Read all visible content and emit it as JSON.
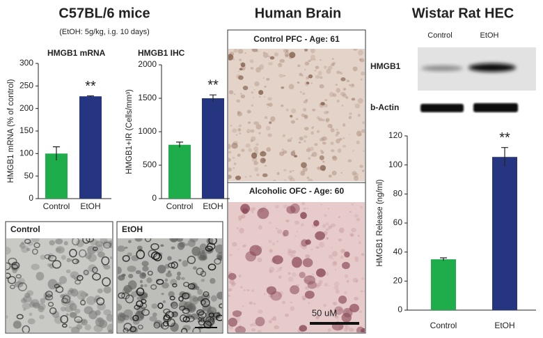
{
  "panels": {
    "mice": {
      "title": "C57BL/6 mice",
      "subtitle": "(EtOH: 5g/kg, i.g. 10 days)",
      "images": [
        "Control",
        "EtOH"
      ],
      "scale_bar": "50 uM"
    },
    "human": {
      "title": "Human Brain",
      "images": [
        "Control PFC - Age: 61",
        "Alcoholic OFC - Age: 60"
      ],
      "scale_bar": "50 uM"
    },
    "rat": {
      "title": "Wistar Rat HEC",
      "blot_columns": [
        "Control",
        "EtOH"
      ],
      "blot_rows": [
        "HMGB1",
        "b-Actin"
      ]
    }
  },
  "chart_data": [
    {
      "type": "bar",
      "title": "HMGB1 mRNA",
      "y_label": "HMGB1 mRNA (% of control)",
      "categories": [
        "Control",
        "EtOH"
      ],
      "values": [
        100,
        227
      ],
      "errors": [
        15,
        1
      ],
      "colors": [
        "#1fad4b",
        "#26357f"
      ],
      "annotation": "**",
      "ylim": [
        0,
        300
      ],
      "yticks": [
        0,
        50,
        100,
        150,
        200,
        250,
        300
      ]
    },
    {
      "type": "bar",
      "title": "HMGB1 IHC",
      "y_label": "HMGB1+IR (Cells/mm³)",
      "categories": [
        "Control",
        "EtOH"
      ],
      "values": [
        805,
        1500
      ],
      "errors": [
        40,
        50
      ],
      "colors": [
        "#1fad4b",
        "#26357f"
      ],
      "annotation": "**",
      "ylim": [
        0,
        2000
      ],
      "yticks": [
        0,
        500,
        1000,
        1500,
        2000
      ]
    },
    {
      "type": "bar",
      "y_label": "HMGB1 Release (ng/ml)",
      "categories": [
        "Control",
        "EtOH"
      ],
      "values": [
        35,
        105.5
      ],
      "errors": [
        1,
        6.5
      ],
      "colors": [
        "#1fad4b",
        "#26357f"
      ],
      "annotation": "**",
      "ylim": [
        0,
        120
      ],
      "yticks": [
        0,
        20,
        40,
        60,
        80,
        100,
        120
      ]
    }
  ]
}
